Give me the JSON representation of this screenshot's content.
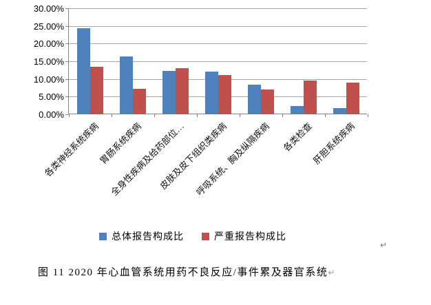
{
  "chart_data": {
    "type": "bar",
    "title": "",
    "categories": [
      "各类神经系统疾病",
      "胃肠系统疾病",
      "全身性疾病及给药部位…",
      "皮肤及皮下组织类疾病",
      "呼吸系统、胸及纵隔疾病",
      "各类检查",
      "肝胆系统疾病"
    ],
    "series": [
      {
        "name": "总体报告构成比",
        "color": "#4F81BD",
        "values": [
          24.3,
          16.3,
          12.2,
          12.0,
          8.3,
          2.4,
          1.7
        ]
      },
      {
        "name": "严重报告构成比",
        "color": "#C0504D",
        "values": [
          13.4,
          7.2,
          13.0,
          11.1,
          7.0,
          9.5,
          8.9
        ]
      }
    ],
    "xlabel": "",
    "ylabel": "",
    "ylim": [
      0,
      30
    ],
    "ytick_step": 5,
    "ytick_labels": [
      "30.00%",
      "25.00%",
      "20.00%",
      "15.00%",
      "10.00%",
      "5.00%",
      "0.00%"
    ],
    "grid": true,
    "legend_position": "bottom",
    "gridline_color": "#a6a6a6",
    "axis_color": "#808080"
  },
  "caption": {
    "text": "图 11  2020 年心血管系统用药不良反应/事件累及器官系统",
    "return_mark": "↵"
  },
  "floating_return_mark": "↵"
}
